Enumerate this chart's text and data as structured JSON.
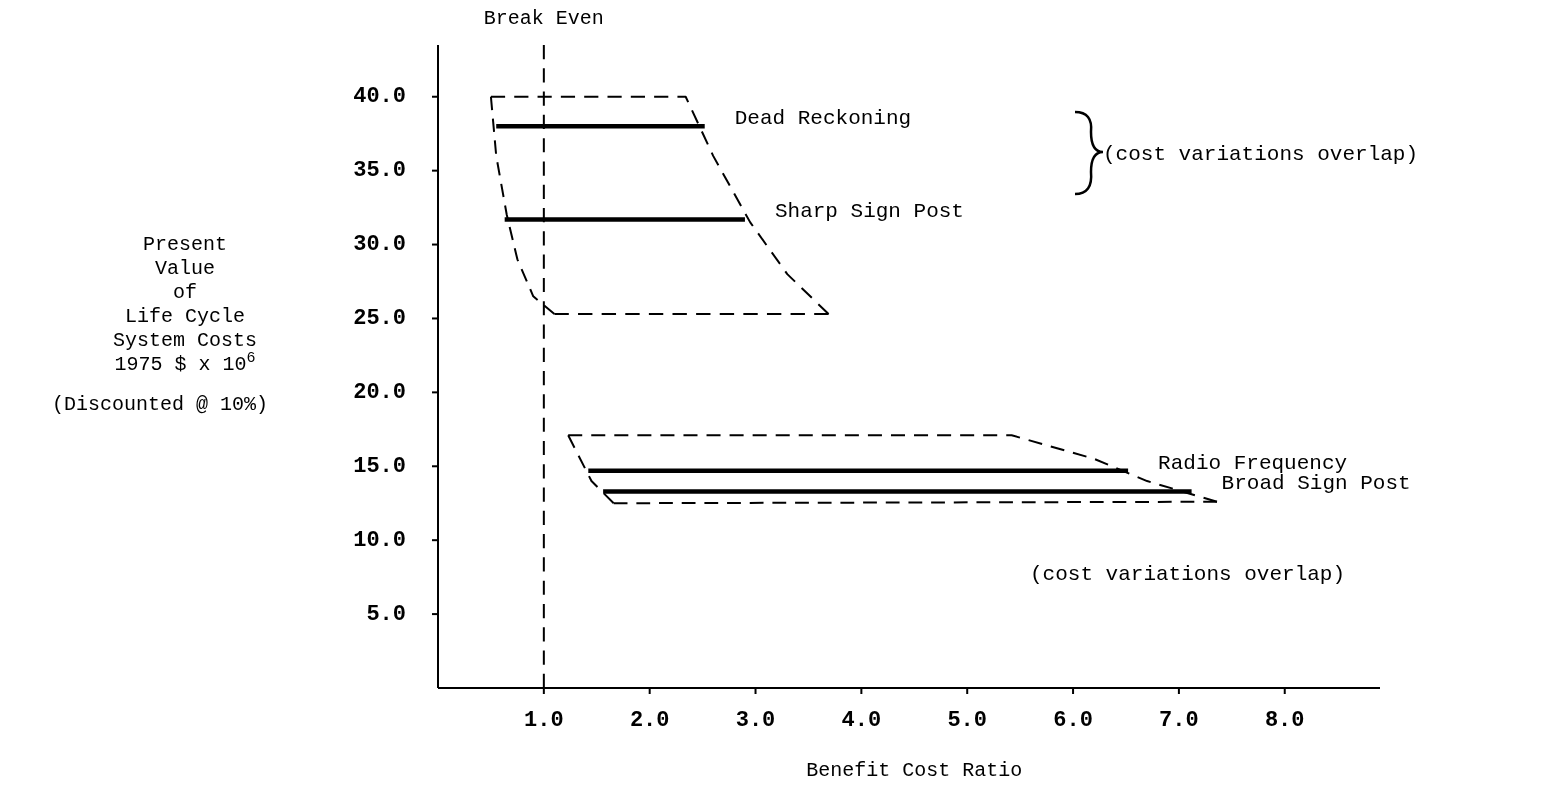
{
  "chart_data": {
    "type": "line",
    "xlabel": "Benefit Cost Ratio",
    "ylabel": "Present\nValue\nof\nLife Cycle\nSystem Costs\n1975 $ x 10$^{6}$\n(Discounted @ 10%)",
    "xlim": [
      0,
      8.9
    ],
    "ylim": [
      0,
      43.5
    ],
    "xticks": [
      {
        "value": 1,
        "label": "1.0"
      },
      {
        "value": 2,
        "label": "2.0"
      },
      {
        "value": 3,
        "label": "3.0"
      },
      {
        "value": 4,
        "label": "4.0"
      },
      {
        "value": 5,
        "label": "5.0"
      },
      {
        "value": 6,
        "label": "6.0"
      },
      {
        "value": 7,
        "label": "7.0"
      },
      {
        "value": 8,
        "label": "8.0"
      }
    ],
    "yticks": [
      {
        "value": 5,
        "label": "5.0"
      },
      {
        "value": 10,
        "label": "10.0"
      },
      {
        "value": 15,
        "label": "15.0"
      },
      {
        "value": 20,
        "label": "20.0"
      },
      {
        "value": 25,
        "label": "25.0"
      },
      {
        "value": 30,
        "label": "30.0"
      },
      {
        "value": 35,
        "label": "35.0"
      },
      {
        "value": 40,
        "label": "40.0"
      }
    ],
    "series": [
      {
        "name": "Dead Reckoning",
        "color": "#000000",
        "x": [
          0.55,
          2.52
        ],
        "values": [
          38,
          38
        ]
      },
      {
        "name": "Sharp Sign Post",
        "color": "#000000",
        "x": [
          0.63,
          2.9
        ],
        "values": [
          31.7,
          31.7
        ]
      },
      {
        "name": "Radio Frequency",
        "color": "#000000",
        "x": [
          1.42,
          6.52
        ],
        "values": [
          14.7,
          14.7
        ]
      },
      {
        "name": "Broad Sign Post",
        "color": "#000000",
        "x": [
          1.56,
          7.12
        ],
        "values": [
          13.3,
          13.3
        ]
      },
      {
        "color": "#000000",
        "line_style": "dashed",
        "x": [
          0.5,
          2.34,
          2.6,
          2.95,
          3.3,
          3.69
        ],
        "values": [
          40,
          40,
          36,
          31.5,
          28,
          25.3
        ]
      },
      {
        "color": "#000000",
        "line_style": "dashed",
        "x": [
          0.5,
          0.55,
          0.65,
          0.75,
          0.9,
          1.1
        ],
        "values": [
          40,
          36,
          32,
          29,
          26.5,
          25.3
        ]
      },
      {
        "color": "#000000",
        "line_style": "dashed",
        "x": [
          1.1,
          3.69
        ],
        "values": [
          25.3,
          25.3
        ]
      },
      {
        "color": "#000000",
        "line_style": "dashed",
        "x": [
          1.23,
          5.42,
          6.2,
          6.7,
          7.36
        ],
        "values": [
          17.1,
          17.1,
          15.5,
          14,
          12.6
        ]
      },
      {
        "color": "#000000",
        "line_style": "dashed",
        "x": [
          1.23,
          1.45,
          1.66
        ],
        "values": [
          17.1,
          14,
          12.5
        ]
      },
      {
        "color": "#000000",
        "line_style": "dashed",
        "x": [
          1.66,
          7.36
        ],
        "values": [
          12.5,
          12.6
        ]
      }
    ],
    "ref_lines": [
      {
        "axis": "x",
        "value": 1,
        "label": "Break Even",
        "line_style": "dashed",
        "color": "#000000"
      }
    ],
    "annotations": [
      "(cost variations overlap)",
      "(cost variations overlap)"
    ]
  }
}
